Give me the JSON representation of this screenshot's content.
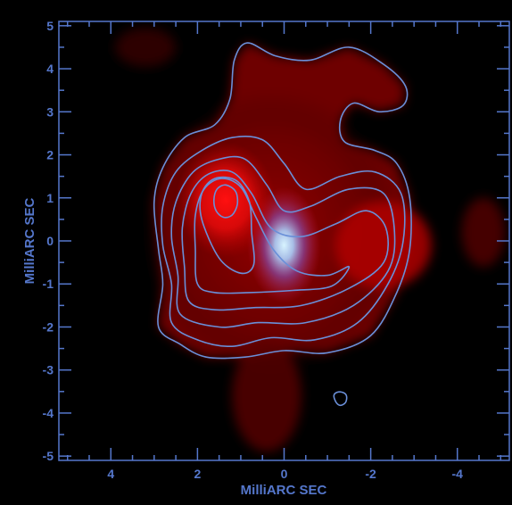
{
  "chart_data": {
    "type": "heatmap",
    "title": "",
    "xlabel": "MilliARC SEC",
    "ylabel": "MilliARC SEC",
    "xlim": [
      5.2,
      -5.2
    ],
    "ylim": [
      -5.1,
      5.1
    ],
    "x_ticks": [
      4,
      2,
      0,
      -2,
      -4
    ],
    "y_ticks": [
      5,
      4,
      3,
      2,
      1,
      0,
      -1,
      -2,
      -3,
      -4,
      -5
    ],
    "x_ticks_text": [
      "4",
      "2",
      "0",
      "-2",
      "-4"
    ],
    "y_ticks_text": [
      "5",
      "4",
      "3",
      "2",
      "1",
      "0",
      "-1",
      "-2",
      "-3",
      "-4",
      "-5"
    ],
    "x_minor_step": 0.5,
    "y_minor_step": 0.5,
    "colormap": "black-red-white",
    "background_color": "#000000",
    "axis_color": "#5577cc",
    "contour_color": "#6a8fd8",
    "intensity_peaks": [
      {
        "label": "core",
        "x": 0.0,
        "y": -0.1,
        "color": "#d8f4ff"
      },
      {
        "label": "eastern lobe",
        "x": 1.35,
        "y": 0.95,
        "color": "#ff1010"
      }
    ],
    "contour_levels": 7,
    "contours": [
      {
        "level": 1,
        "points": [
          [
            2.9,
            -2.0
          ],
          [
            2.8,
            -1.0
          ],
          [
            2.9,
            -0.2
          ],
          [
            3.0,
            0.9
          ],
          [
            2.8,
            1.7
          ],
          [
            2.3,
            2.4
          ],
          [
            1.6,
            2.7
          ],
          [
            1.25,
            3.3
          ],
          [
            1.15,
            4.2
          ],
          [
            0.85,
            4.6
          ],
          [
            0.2,
            4.3
          ],
          [
            -0.6,
            4.2
          ],
          [
            -1.5,
            4.5
          ],
          [
            -2.3,
            4.1
          ],
          [
            -2.8,
            3.6
          ],
          [
            -2.75,
            3.15
          ],
          [
            -2.2,
            3.0
          ],
          [
            -1.6,
            3.2
          ],
          [
            -1.3,
            2.8
          ],
          [
            -1.4,
            2.3
          ],
          [
            -2.1,
            2.1
          ],
          [
            -2.6,
            1.8
          ],
          [
            -2.9,
            1.0
          ],
          [
            -2.9,
            -0.2
          ],
          [
            -2.6,
            -1.2
          ],
          [
            -2.0,
            -2.2
          ],
          [
            -1.0,
            -2.6
          ],
          [
            0.0,
            -2.55
          ],
          [
            0.9,
            -2.7
          ],
          [
            1.8,
            -2.7
          ],
          [
            2.4,
            -2.4
          ]
        ]
      },
      {
        "level": 2,
        "points": [
          [
            2.6,
            -1.9
          ],
          [
            2.6,
            -1.0
          ],
          [
            2.8,
            -0.1
          ],
          [
            2.8,
            0.8
          ],
          [
            2.5,
            1.6
          ],
          [
            1.9,
            2.1
          ],
          [
            1.2,
            2.4
          ],
          [
            0.5,
            2.35
          ],
          [
            0.0,
            1.8
          ],
          [
            -0.5,
            1.2
          ],
          [
            -1.3,
            1.5
          ],
          [
            -2.1,
            1.6
          ],
          [
            -2.7,
            1.1
          ],
          [
            -2.75,
            0.0
          ],
          [
            -2.4,
            -1.0
          ],
          [
            -1.7,
            -1.9
          ],
          [
            -0.7,
            -2.3
          ],
          [
            0.3,
            -2.25
          ],
          [
            1.2,
            -2.45
          ],
          [
            2.0,
            -2.3
          ]
        ]
      },
      {
        "level": 3,
        "points": [
          [
            2.4,
            -1.7
          ],
          [
            2.45,
            -0.8
          ],
          [
            2.6,
            0.1
          ],
          [
            2.5,
            0.9
          ],
          [
            2.1,
            1.6
          ],
          [
            1.5,
            1.9
          ],
          [
            0.9,
            1.9
          ],
          [
            0.4,
            1.3
          ],
          [
            0.0,
            0.7
          ],
          [
            -0.6,
            0.8
          ],
          [
            -1.5,
            1.2
          ],
          [
            -2.3,
            1.1
          ],
          [
            -2.55,
            0.2
          ],
          [
            -2.4,
            -0.7
          ],
          [
            -1.6,
            -1.5
          ],
          [
            -0.5,
            -1.9
          ],
          [
            0.6,
            -1.9
          ],
          [
            1.5,
            -2.0
          ]
        ]
      },
      {
        "level": 4,
        "points": [
          [
            2.2,
            -1.4
          ],
          [
            2.3,
            -0.6
          ],
          [
            2.35,
            0.3
          ],
          [
            2.15,
            1.1
          ],
          [
            1.75,
            1.55
          ],
          [
            1.2,
            1.6
          ],
          [
            0.75,
            1.1
          ],
          [
            0.3,
            0.3
          ],
          [
            -0.4,
            0.1
          ],
          [
            -1.2,
            0.4
          ],
          [
            -1.9,
            0.7
          ],
          [
            -2.35,
            0.3
          ],
          [
            -2.3,
            -0.5
          ],
          [
            -1.5,
            -1.1
          ],
          [
            -0.4,
            -1.5
          ],
          [
            0.7,
            -1.55
          ],
          [
            1.6,
            -1.6
          ]
        ]
      },
      {
        "level": 5,
        "points": [
          [
            2.0,
            -1.0
          ],
          [
            2.05,
            -0.2
          ],
          [
            2.05,
            0.6
          ],
          [
            1.85,
            1.2
          ],
          [
            1.45,
            1.45
          ],
          [
            1.0,
            1.25
          ],
          [
            0.65,
            0.55
          ],
          [
            0.25,
            -0.2
          ],
          [
            -0.3,
            -0.7
          ],
          [
            -1.0,
            -0.8
          ],
          [
            -1.5,
            -0.6
          ],
          [
            -1.1,
            -1.05
          ],
          [
            -0.2,
            -1.15
          ],
          [
            0.8,
            -1.2
          ],
          [
            1.6,
            -1.2
          ]
        ]
      },
      {
        "level": 6,
        "points": [
          [
            1.9,
            0.5
          ],
          [
            1.9,
            1.1
          ],
          [
            1.6,
            1.45
          ],
          [
            1.1,
            1.4
          ],
          [
            0.8,
            0.9
          ],
          [
            0.75,
            0.2
          ],
          [
            0.7,
            -0.55
          ],
          [
            1.0,
            -0.75
          ],
          [
            1.5,
            -0.4
          ]
        ]
      },
      {
        "level": 7,
        "points": [
          [
            1.62,
            0.95
          ],
          [
            1.55,
            1.2
          ],
          [
            1.35,
            1.3
          ],
          [
            1.12,
            1.15
          ],
          [
            1.08,
            0.85
          ],
          [
            1.2,
            0.6
          ],
          [
            1.4,
            0.55
          ],
          [
            1.57,
            0.7
          ]
        ]
      },
      {
        "level": 1,
        "points": [
          [
            -1.15,
            -3.6
          ],
          [
            -1.2,
            -3.75
          ],
          [
            -1.3,
            -3.82
          ],
          [
            -1.42,
            -3.75
          ],
          [
            -1.44,
            -3.6
          ],
          [
            -1.35,
            -3.52
          ],
          [
            -1.22,
            -3.52
          ]
        ]
      }
    ],
    "grid": false,
    "legend": "none"
  }
}
